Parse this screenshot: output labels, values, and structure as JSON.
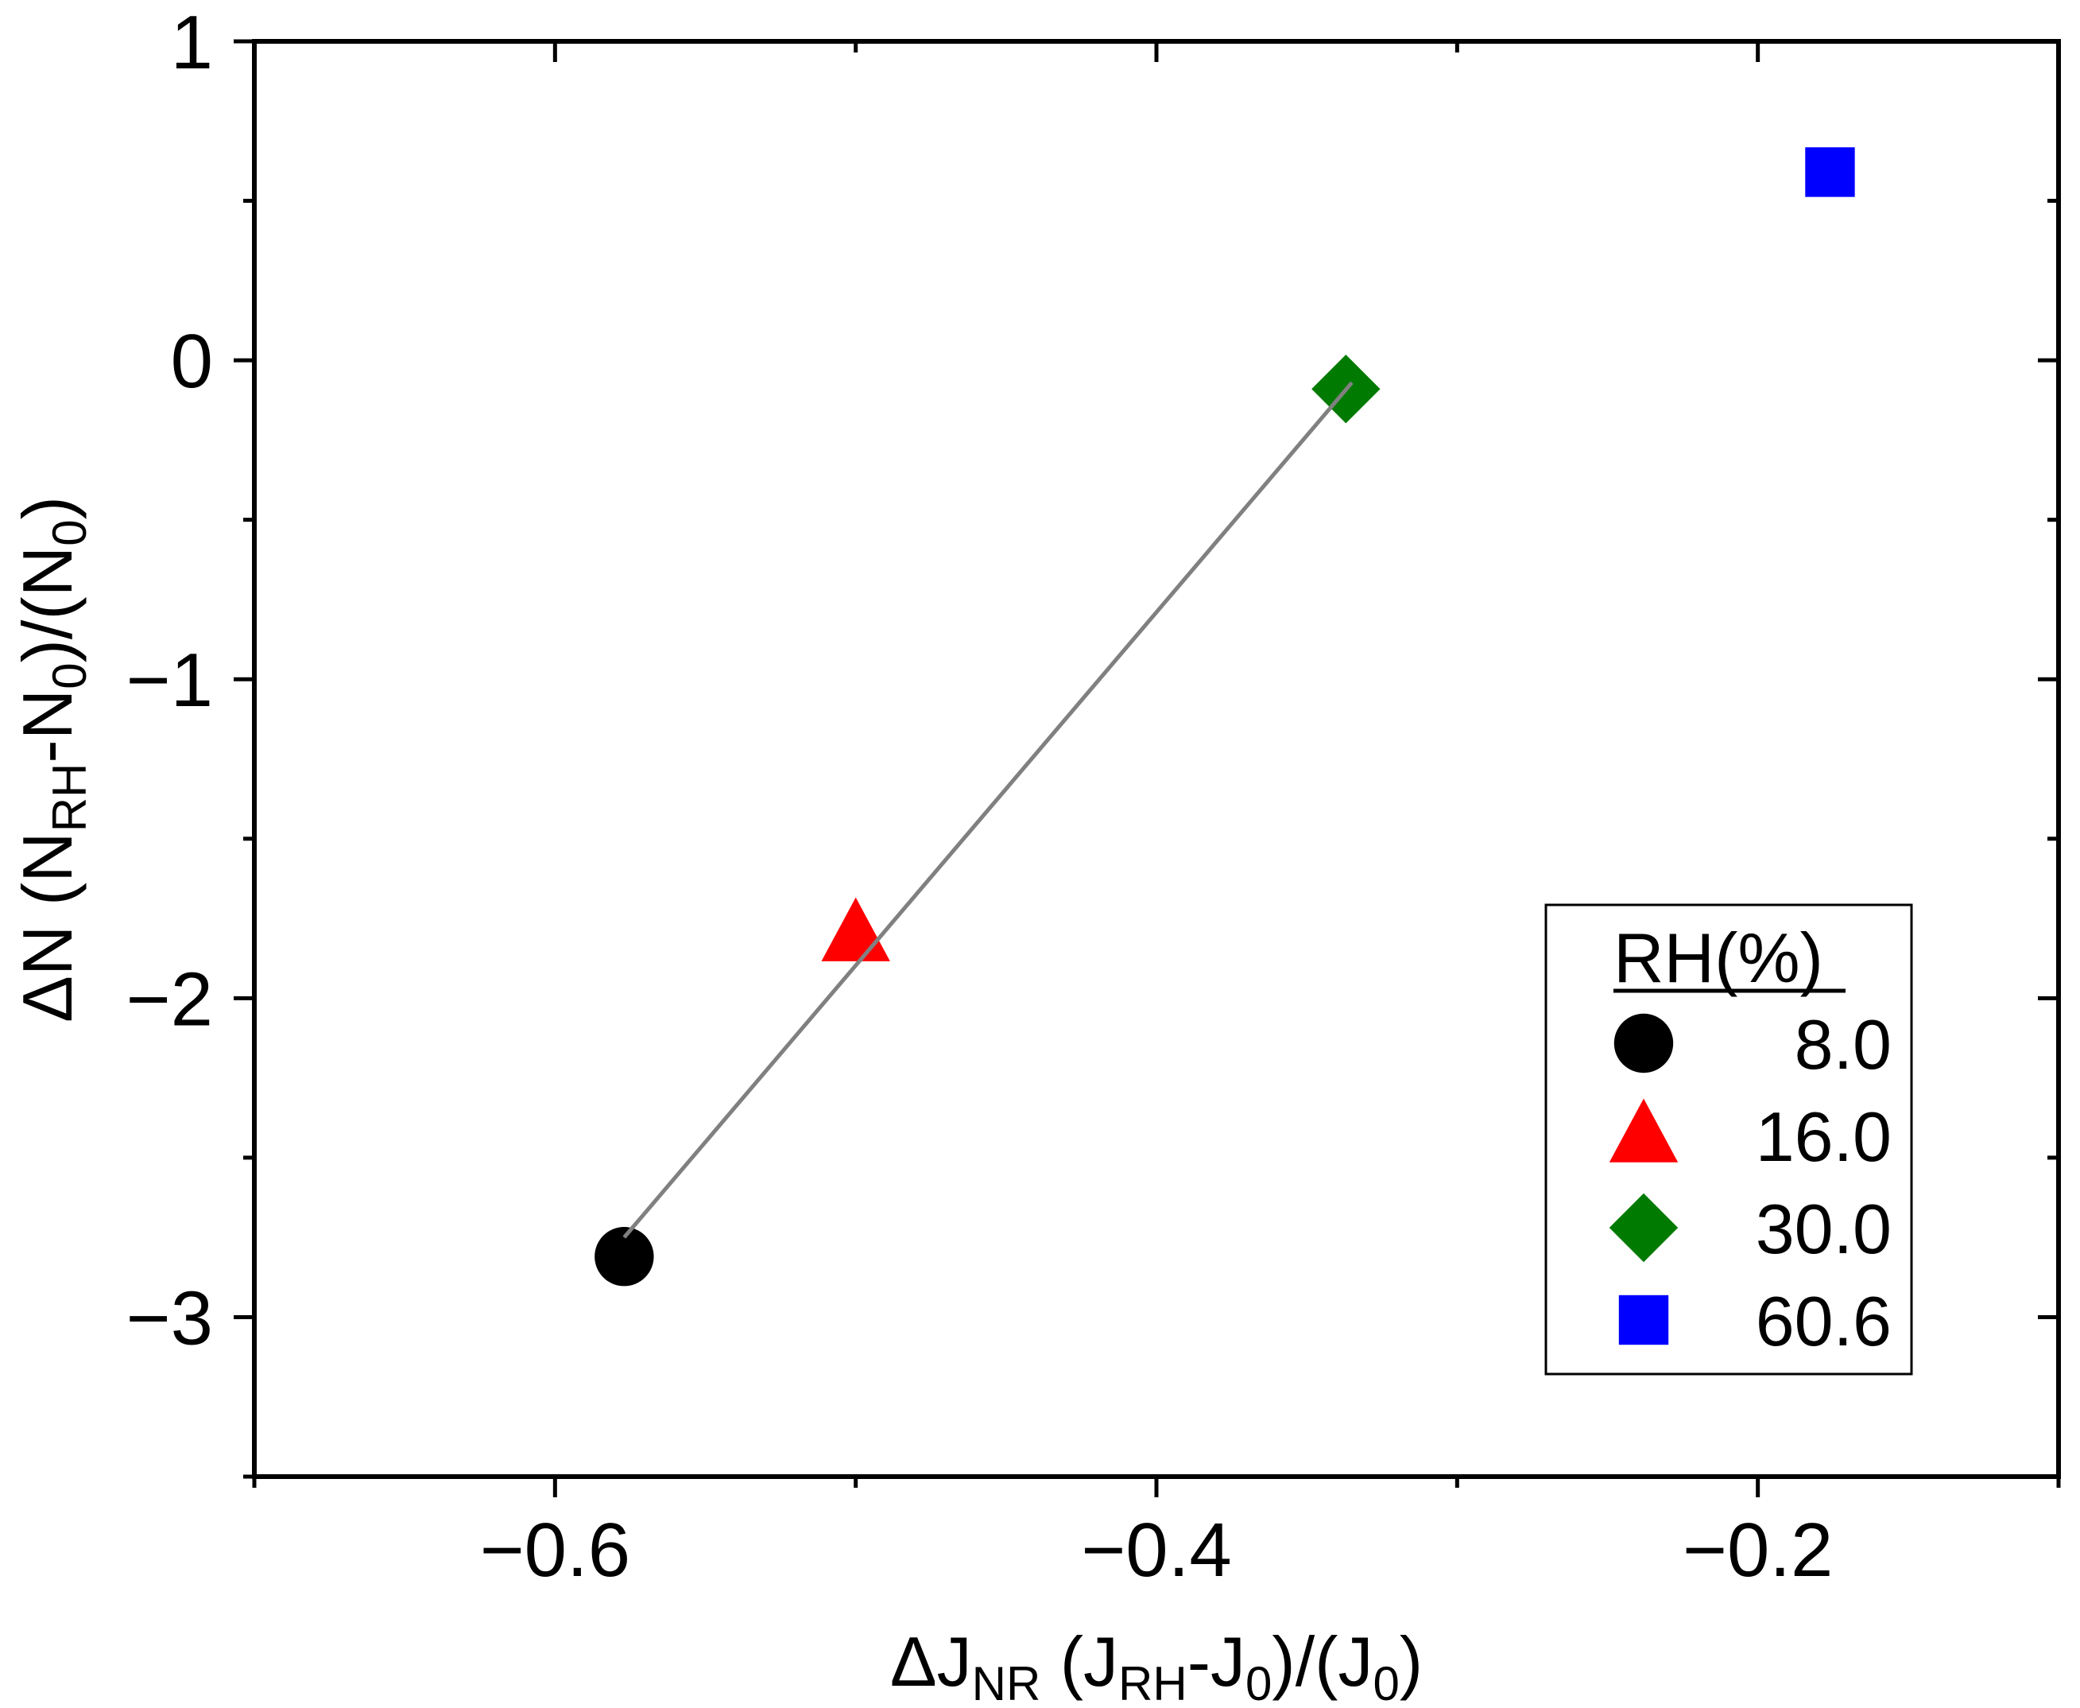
{
  "chart_data": {
    "type": "scatter",
    "title": "",
    "xlabel": {
      "parts": [
        {
          "text": "ΔJ",
          "sub": false
        },
        {
          "text": "NR",
          "sub": true
        },
        {
          "text": " (J",
          "sub": false
        },
        {
          "text": "RH",
          "sub": true
        },
        {
          "text": "-J",
          "sub": false
        },
        {
          "text": "0",
          "sub": true
        },
        {
          "text": ")/(J",
          "sub": false
        },
        {
          "text": "0",
          "sub": true
        },
        {
          "text": ")",
          "sub": false
        }
      ]
    },
    "ylabel": {
      "parts": [
        {
          "text": "ΔN (N",
          "sub": false
        },
        {
          "text": "RH",
          "sub": true
        },
        {
          "text": "-N",
          "sub": false
        },
        {
          "text": "0",
          "sub": true
        },
        {
          "text": ")/(N",
          "sub": false
        },
        {
          "text": "0",
          "sub": true
        },
        {
          "text": ")",
          "sub": false
        }
      ]
    },
    "xlim": [
      -0.7,
      -0.1
    ],
    "ylim": [
      -3.5,
      1.0
    ],
    "xticks": [
      {
        "value": -0.6,
        "label": "−0.6"
      },
      {
        "value": -0.4,
        "label": "−0.4"
      },
      {
        "value": -0.2,
        "label": "−0.2"
      }
    ],
    "x_minor_ticks": [
      -0.7,
      -0.5,
      -0.3,
      -0.1
    ],
    "yticks": [
      {
        "value": 1,
        "label": "1"
      },
      {
        "value": 0,
        "label": "0"
      },
      {
        "value": -1,
        "label": "−1"
      },
      {
        "value": -2,
        "label": "−2"
      },
      {
        "value": -3,
        "label": "−3"
      }
    ],
    "y_minor_ticks": [
      0.5,
      -0.5,
      -1.5,
      -2.5,
      -3.5
    ],
    "legend_title": "RH(%)",
    "legend_position": "bottom-right",
    "series": [
      {
        "name": "8.0",
        "marker": "circle",
        "color": "#000000",
        "x": -0.577,
        "y": -2.81
      },
      {
        "name": "16.0",
        "marker": "triangle",
        "color": "#ff0000",
        "x": -0.5,
        "y": -1.8
      },
      {
        "name": "30.0",
        "marker": "diamond",
        "color": "#007a00",
        "x": -0.337,
        "y": -0.09
      },
      {
        "name": "60.6",
        "marker": "square",
        "color": "#0000ff",
        "x": -0.176,
        "y": 0.59
      }
    ],
    "fit_line": {
      "color": "#808080",
      "x": [
        -0.577,
        -0.335
      ],
      "y": [
        -2.75,
        -0.07
      ]
    }
  }
}
